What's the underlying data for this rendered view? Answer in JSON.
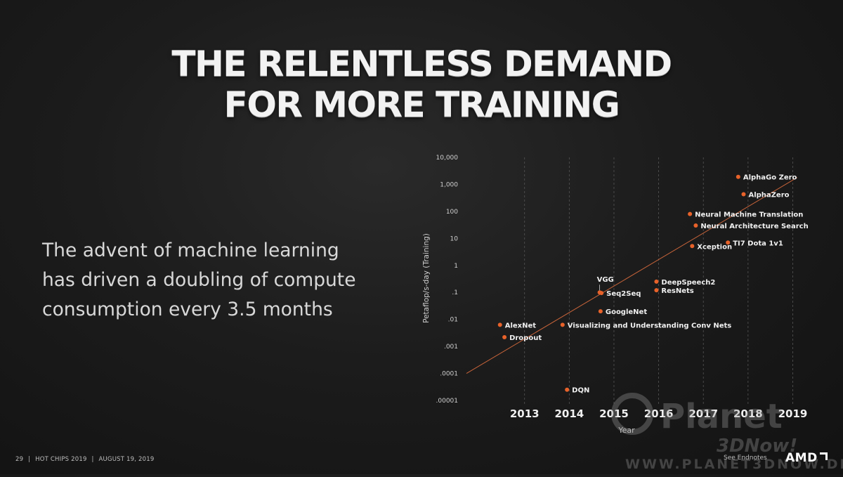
{
  "slide": {
    "title_lines": [
      "THE RELENTLESS DEMAND",
      "FOR MORE TRAINING"
    ],
    "body_lines": [
      "The advent of machine learning",
      "has driven a doubling of compute",
      "consumption every 3.5 months"
    ],
    "footer": {
      "page_number": "29",
      "separator": "|",
      "event": "HOT CHIPS 2019",
      "date": "AUGUST 19, 2019"
    },
    "endnotes_label": "See Endnotes",
    "logo_text": "AMD",
    "watermark": {
      "name_line1": "Planet",
      "name_line2": "3DNow!",
      "url": "WWW.PLANET3DNOW.DE"
    }
  },
  "colors": {
    "point": "#e8622a",
    "trend": "#c8643a",
    "text": "#e6e6e6",
    "background": "#1c1c1c"
  },
  "chart_data": {
    "type": "scatter",
    "xlabel": "Year",
    "ylabel": "Petaflop/s-day (Training)",
    "y_scale": "log",
    "ylim": [
      1e-05,
      10000
    ],
    "xlim": [
      2011.7,
      2019.15
    ],
    "x_ticks": [
      2013,
      2014,
      2015,
      2016,
      2017,
      2018,
      2019
    ],
    "x_tick_labels": [
      "2013",
      "2014",
      "2015",
      "2016",
      "2017",
      "2018",
      "2019"
    ],
    "y_ticks": [
      1e-05,
      0.0001,
      0.001,
      0.01,
      0.1,
      1,
      10,
      100,
      1000,
      10000
    ],
    "y_tick_labels": [
      ".00001",
      ".0001",
      ".001",
      ".01",
      ".1",
      "1",
      "10",
      "100",
      "1,000",
      "10,000"
    ],
    "grid": "vertical dashed at year ticks",
    "trend_line": {
      "from": [
        2011.7,
        0.0001
      ],
      "to": [
        2019.1,
        1800
      ]
    },
    "points": [
      {
        "label": "AlexNet",
        "x": 2012.45,
        "y": 0.0063
      },
      {
        "label": "Dropout",
        "x": 2012.55,
        "y": 0.0022
      },
      {
        "label": "DQN",
        "x": 2013.95,
        "y": 2.5e-05
      },
      {
        "label": "Visualizing and Understanding Conv Nets",
        "x": 2013.85,
        "y": 0.0063
      },
      {
        "label": "GoogleNet",
        "x": 2014.7,
        "y": 0.02
      },
      {
        "label": "VGG",
        "x": 2014.68,
        "y": 0.1
      },
      {
        "label": "Seq2Seq",
        "x": 2014.72,
        "y": 0.095
      },
      {
        "label": "DeepSpeech2",
        "x": 2015.95,
        "y": 0.25
      },
      {
        "label": "ResNets",
        "x": 2015.95,
        "y": 0.12
      },
      {
        "label": "Xception",
        "x": 2016.75,
        "y": 5.2
      },
      {
        "label": "Neural Machine Translation",
        "x": 2016.7,
        "y": 80
      },
      {
        "label": "Neural Architecture Search",
        "x": 2016.83,
        "y": 30
      },
      {
        "label": "TI7 Dota 1v1",
        "x": 2017.55,
        "y": 7
      },
      {
        "label": "AlphaGo Zero",
        "x": 2017.78,
        "y": 1900
      },
      {
        "label": "AlphaZero",
        "x": 2017.9,
        "y": 430
      }
    ]
  }
}
